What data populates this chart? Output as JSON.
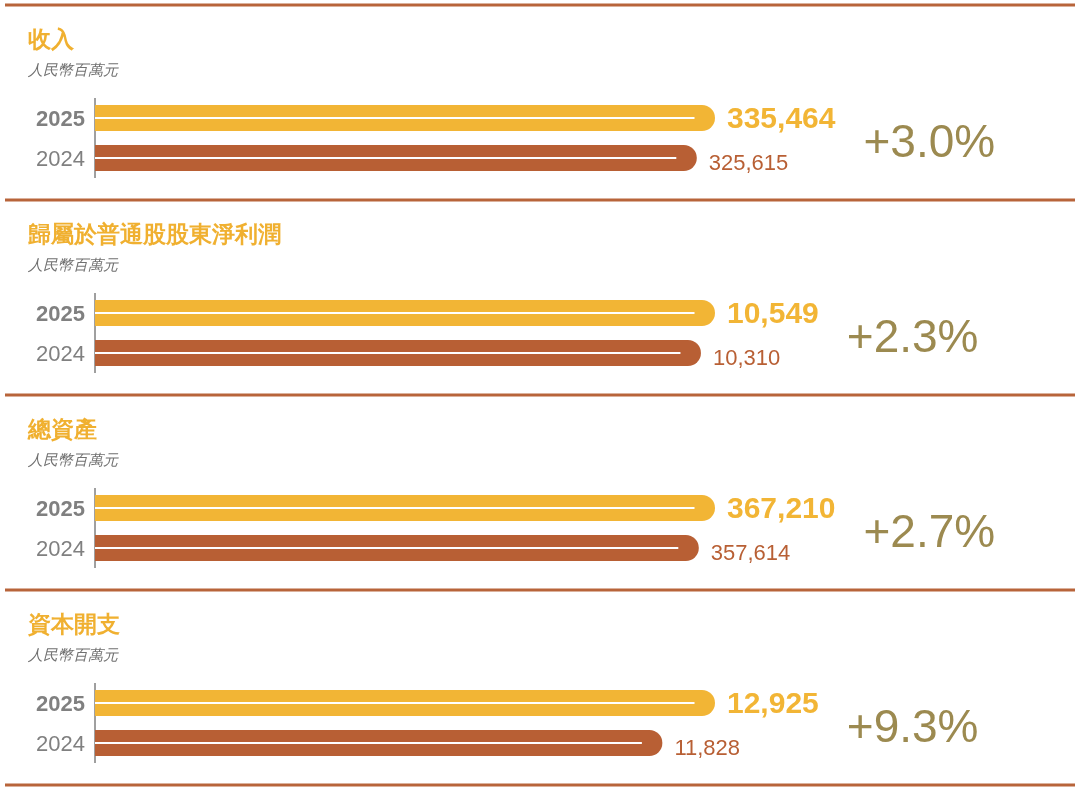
{
  "chart_data": [
    {
      "type": "bar",
      "orientation": "horizontal",
      "title": "收入",
      "subtitle": "人民幣百萬元",
      "categories": [
        "2025",
        "2024"
      ],
      "values": [
        335464,
        325615
      ],
      "value_labels": [
        "335,464",
        "325,615"
      ],
      "colors": [
        "#f2b535",
        "#b85f34"
      ],
      "tick_labels": "y",
      "annotations": [
        "+3.0%"
      ]
    },
    {
      "type": "bar",
      "orientation": "horizontal",
      "title": "歸屬於普通股股東淨利潤",
      "subtitle": "人民幣百萬元",
      "categories": [
        "2025",
        "2024"
      ],
      "values": [
        10549,
        10310
      ],
      "value_labels": [
        "10,549",
        "10,310"
      ],
      "colors": [
        "#f2b535",
        "#b85f34"
      ],
      "tick_labels": "y",
      "annotations": [
        "+2.3%"
      ]
    },
    {
      "type": "bar",
      "orientation": "horizontal",
      "title": "總資產",
      "subtitle": "人民幣百萬元",
      "categories": [
        "2025",
        "2024"
      ],
      "values": [
        367210,
        357614
      ],
      "value_labels": [
        "367,210",
        "357,614"
      ],
      "colors": [
        "#f2b535",
        "#b85f34"
      ],
      "tick_labels": "y",
      "annotations": [
        "+2.7%"
      ]
    },
    {
      "type": "bar",
      "orientation": "horizontal",
      "title": "資本開支",
      "subtitle": "人民幣百萬元",
      "categories": [
        "2025",
        "2024"
      ],
      "values": [
        12925,
        11828
      ],
      "value_labels": [
        "12,925",
        "11,828"
      ],
      "colors": [
        "#f2b535",
        "#b85f34"
      ],
      "tick_labels": "y",
      "annotations": [
        "+9.3%"
      ]
    }
  ]
}
